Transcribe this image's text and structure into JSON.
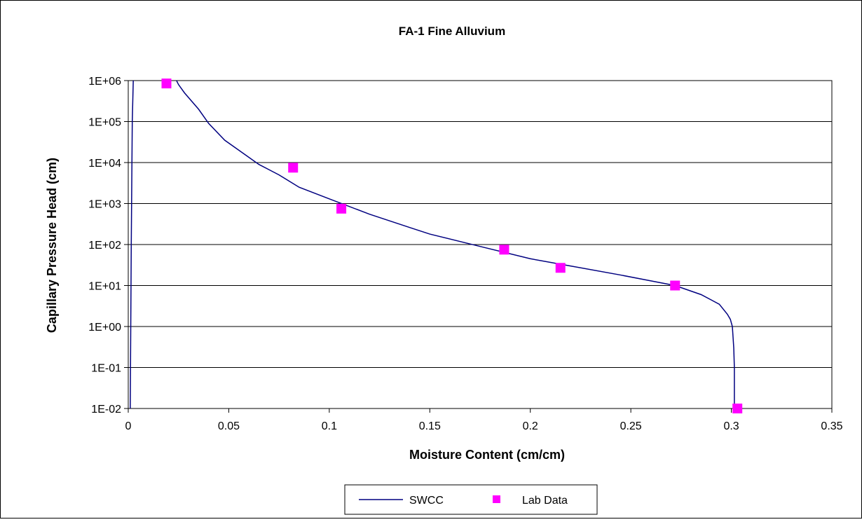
{
  "chart_data": {
    "type": "line",
    "title": "FA-1 Fine Alluvium",
    "xlabel": "Moisture Content (cm/cm)",
    "ylabel": "Capillary Pressure Head (cm)",
    "xlim": [
      0,
      0.35
    ],
    "ylim": [
      0.01,
      1000000
    ],
    "y_scale": "log",
    "grid": "horizontal",
    "legend_position": "bottom",
    "x_ticks": [
      "0",
      "0.05",
      "0.1",
      "0.15",
      "0.2",
      "0.25",
      "0.3",
      "0.35"
    ],
    "y_ticks": [
      "1E-02",
      "1E-01",
      "1E+00",
      "1E+01",
      "1E+02",
      "1E+03",
      "1E+04",
      "1E+05",
      "1E+06"
    ],
    "series": [
      {
        "name": "SWCC",
        "type": "line",
        "color": "#000080",
        "x": [
          0.3015,
          0.3015,
          0.3012,
          0.3005,
          0.2995,
          0.298,
          0.294,
          0.285,
          0.272,
          0.26,
          0.245,
          0.22,
          0.2,
          0.175,
          0.15,
          0.14,
          0.12,
          0.1,
          0.085,
          0.075,
          0.065,
          0.055,
          0.048,
          0.04,
          0.035,
          0.028,
          0.025,
          0.024
        ],
        "y": [
          0.01,
          0.1,
          0.3,
          1,
          1.5,
          2,
          3.5,
          6,
          10,
          13,
          18,
          30,
          45,
          90,
          180,
          260,
          550,
          1300,
          2500,
          5000,
          9000,
          20000,
          35000,
          90000,
          200000,
          500000,
          800000,
          1000000
        ]
      },
      {
        "name": "",
        "type": "line",
        "color": "#000080",
        "x": [
          0.001,
          0.0015,
          0.002,
          0.0025
        ],
        "y": [
          0.01,
          100,
          100000,
          1000000
        ]
      },
      {
        "name": "Lab Data",
        "type": "scatter",
        "color": "#FF00FF",
        "x": [
          0.019,
          0.082,
          0.106,
          0.187,
          0.215,
          0.272,
          0.303
        ],
        "y": [
          850000,
          7500.0,
          750,
          75,
          27,
          10,
          0.01
        ]
      }
    ]
  }
}
